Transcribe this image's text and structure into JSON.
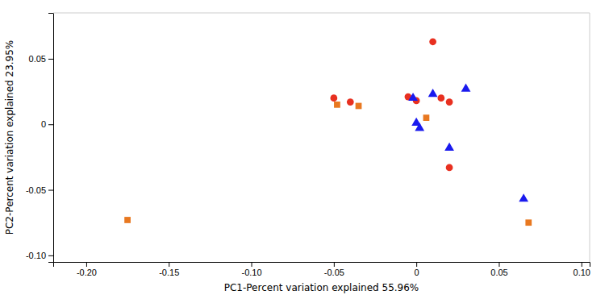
{
  "chart_data": {
    "type": "scatter",
    "xlabel": "PC1-Percent variation explained 55.96%",
    "ylabel": "PC2-Percent variation explained 23.95%",
    "xlim": [
      -0.22,
      0.105
    ],
    "ylim": [
      -0.105,
      0.085
    ],
    "xticks": [
      {
        "value": -0.2,
        "label": "-0.20"
      },
      -0.15,
      {
        "value": -0.1,
        "label": "-0.10"
      },
      -0.05,
      0,
      0.05,
      {
        "value": 0.1,
        "label": "0.10"
      }
    ],
    "yticks": [
      {
        "value": -0.1,
        "label": "-0.10"
      },
      -0.05,
      0,
      0.05
    ],
    "series": [
      {
        "color": "#e83020",
        "marker": "circle",
        "x": [
          0.01,
          -0.05,
          -0.04,
          -0.005,
          0.0,
          0.015,
          0.02,
          0.02
        ],
        "values": [
          0.063,
          0.02,
          0.017,
          0.021,
          0.018,
          0.02,
          0.017,
          -0.033
        ]
      },
      {
        "color": "#1a1aee",
        "marker": "triangle",
        "x": [
          -0.002,
          0.01,
          0.03,
          0.0,
          0.002,
          0.02,
          0.065
        ],
        "values": [
          0.02,
          0.023,
          0.027,
          0.001,
          -0.003,
          -0.018,
          -0.057
        ]
      },
      {
        "color": "#e87820",
        "marker": "square",
        "x": [
          -0.175,
          -0.048,
          -0.035,
          0.006,
          0.068
        ],
        "values": [
          -0.073,
          0.015,
          0.014,
          0.005,
          -0.075
        ]
      }
    ]
  }
}
